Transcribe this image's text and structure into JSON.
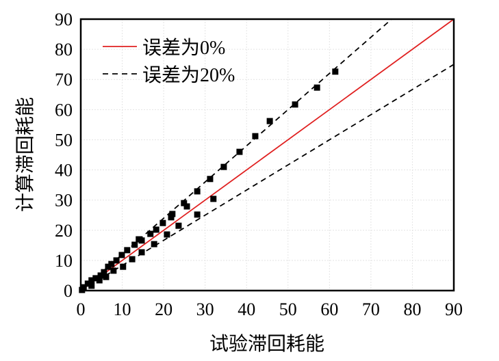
{
  "chart_data": {
    "type": "scatter",
    "title": "",
    "xlabel": "试验滞回耗能",
    "ylabel": "计算滞回耗能",
    "xlim": [
      0,
      90
    ],
    "ylim": [
      0,
      90
    ],
    "xticks": [
      "0",
      "10",
      "20",
      "30",
      "40",
      "50",
      "60",
      "70",
      "80",
      "90"
    ],
    "yticks": [
      "0",
      "10",
      "20",
      "30",
      "40",
      "50",
      "60",
      "70",
      "80",
      "90"
    ],
    "grid": true,
    "legend_position": "top-left",
    "legend": [
      {
        "label": "误差为0%",
        "style": "solid",
        "color": "#e02020"
      },
      {
        "label": "误差为20%",
        "style": "dashed",
        "color": "#000000"
      }
    ],
    "reference_lines": [
      {
        "name": "误差为0%",
        "slope": 1.0
      },
      {
        "name": "误差为20%",
        "slope": 1.2
      },
      {
        "name": "误差为20%",
        "slope": 0.8333
      }
    ],
    "points": [
      [
        61.4,
        72.6
      ],
      [
        57.0,
        67.3
      ],
      [
        51.7,
        61.7
      ],
      [
        45.6,
        56.2
      ],
      [
        42.1,
        51.2
      ],
      [
        38.3,
        46.0
      ],
      [
        34.5,
        41.0
      ],
      [
        31.2,
        37.0
      ],
      [
        28.1,
        32.9
      ],
      [
        24.9,
        29.0
      ],
      [
        25.6,
        27.9
      ],
      [
        32.0,
        30.4
      ],
      [
        28.1,
        25.2
      ],
      [
        23.6,
        21.5
      ],
      [
        22.1,
        25.4
      ],
      [
        21.8,
        24.3
      ],
      [
        19.8,
        22.4
      ],
      [
        18.2,
        20.2
      ],
      [
        16.8,
        18.8
      ],
      [
        20.8,
        18.6
      ],
      [
        17.7,
        15.4
      ],
      [
        14.7,
        16.6
      ],
      [
        14.0,
        17.0
      ],
      [
        13.0,
        15.2
      ],
      [
        14.7,
        12.7
      ],
      [
        11.2,
        13.4
      ],
      [
        9.9,
        11.8
      ],
      [
        12.4,
        10.4
      ],
      [
        8.6,
        10.0
      ],
      [
        10.2,
        7.9
      ],
      [
        7.4,
        8.8
      ],
      [
        6.6,
        7.9
      ],
      [
        7.9,
        6.6
      ],
      [
        6.1,
        4.5
      ],
      [
        5.6,
        6.1
      ],
      [
        4.8,
        5.0
      ],
      [
        3.6,
        4.1
      ],
      [
        4.5,
        3.4
      ],
      [
        2.6,
        3.4
      ],
      [
        1.7,
        2.3
      ],
      [
        0.7,
        1.1
      ],
      [
        0.3,
        0.2
      ],
      [
        2.6,
        1.6
      ]
    ]
  }
}
